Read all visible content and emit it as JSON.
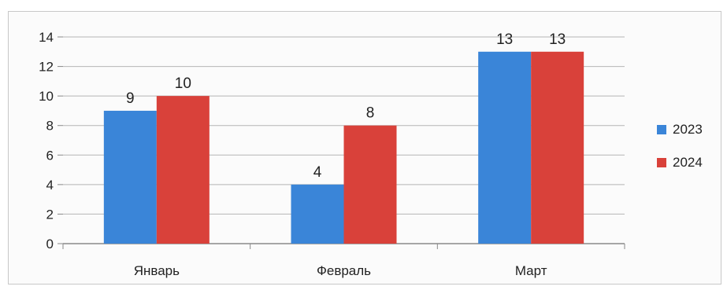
{
  "chart_data": {
    "type": "bar",
    "categories": [
      "Январь",
      "Февраль",
      "Март"
    ],
    "series": [
      {
        "name": "2023",
        "values": [
          9,
          4,
          13
        ],
        "color": "#3a85d8"
      },
      {
        "name": "2024",
        "values": [
          10,
          8,
          13
        ],
        "color": "#d9413a"
      }
    ],
    "ylim": [
      0,
      14
    ],
    "yticks": [
      "0",
      "2",
      "4",
      "6",
      "8",
      "10",
      "12",
      "14"
    ],
    "grid": true,
    "legend": "right",
    "data_labels": true
  }
}
